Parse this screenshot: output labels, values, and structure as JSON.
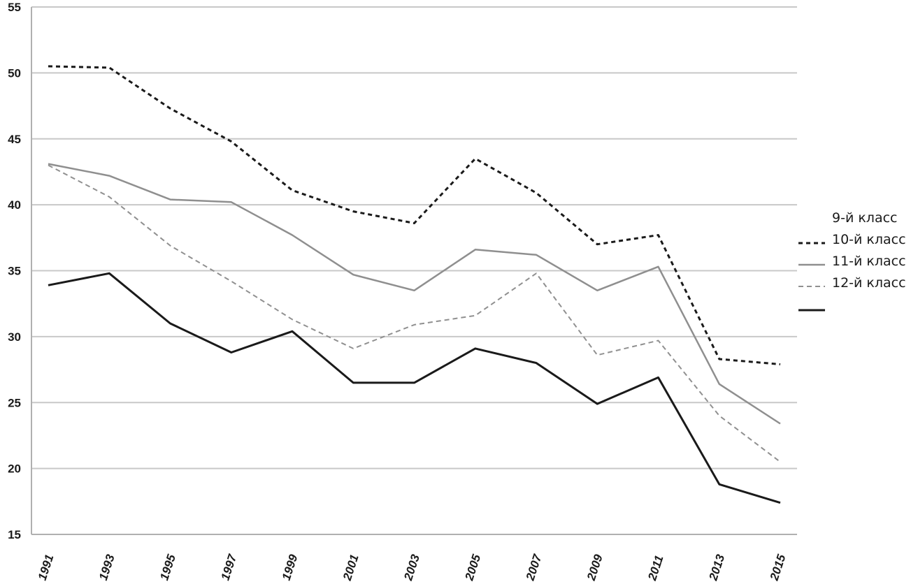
{
  "chart_data": {
    "type": "line",
    "x": [
      "1991",
      "1993",
      "1995",
      "1997",
      "1999",
      "2001",
      "2003",
      "2005",
      "2007",
      "2009",
      "2011",
      "2013",
      "2015"
    ],
    "ylim": [
      15,
      55
    ],
    "yticks": [
      15,
      20,
      25,
      30,
      35,
      40,
      45,
      50,
      55
    ],
    "grid": true,
    "legend_position": "right",
    "series": [
      {
        "name": "9-й класс",
        "color": "#1a1a1a",
        "dash": "6,5",
        "width": 3,
        "values": [
          50.5,
          50.4,
          47.3,
          44.8,
          41.1,
          39.5,
          38.6,
          43.5,
          40.9,
          37.0,
          37.7,
          28.3,
          27.9
        ]
      },
      {
        "name": "10-й класс",
        "color": "#8f8f8f",
        "dash": "",
        "width": 2.5,
        "values": [
          43.1,
          42.2,
          40.4,
          40.2,
          37.7,
          34.7,
          33.5,
          36.6,
          36.2,
          33.5,
          35.3,
          26.4,
          23.4
        ]
      },
      {
        "name": "11-й класс",
        "color": "#909090",
        "dash": "7,5",
        "width": 2,
        "values": [
          43.0,
          40.6,
          36.9,
          34.2,
          31.3,
          29.1,
          30.9,
          31.6,
          34.8,
          28.6,
          29.7,
          24.0,
          20.5
        ]
      },
      {
        "name": "12-й класс",
        "color": "#1a1a1a",
        "dash": "",
        "width": 3,
        "values": [
          33.9,
          34.8,
          31.0,
          28.8,
          30.4,
          26.5,
          26.5,
          29.1,
          28.0,
          24.9,
          26.9,
          18.8,
          17.4
        ]
      }
    ]
  }
}
